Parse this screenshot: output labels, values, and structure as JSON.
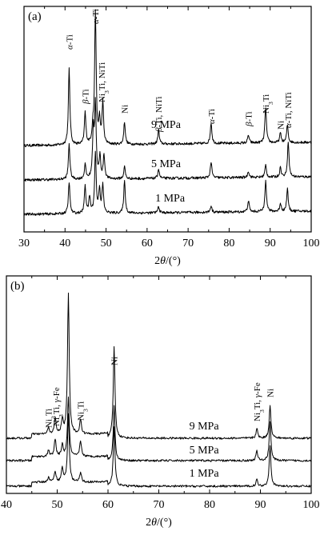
{
  "chart_data": [
    {
      "type": "line",
      "panel_label": "(a)",
      "xlabel": "2θ/(°)",
      "ylabel": "",
      "xlim": [
        30,
        100
      ],
      "xticks": [
        30,
        40,
        50,
        60,
        70,
        80,
        90,
        100
      ],
      "grid": false,
      "baseline_shape": "noisy baselines, intensity rises gently toward high angle",
      "series": [
        {
          "name": "9 MPa",
          "label": "9 MPa",
          "label_x": 61,
          "peaks": [
            [
              41.0,
              95
            ],
            [
              44.9,
              40
            ],
            [
              46.8,
              18
            ],
            [
              47.4,
              165
            ],
            [
              48.4,
              30
            ],
            [
              49.2,
              52
            ],
            [
              54.5,
              28
            ],
            [
              62.8,
              18
            ],
            [
              75.6,
              26
            ],
            [
              84.7,
              10
            ],
            [
              88.9,
              45
            ],
            [
              92.5,
              12
            ],
            [
              94.2,
              22
            ]
          ]
        },
        {
          "name": "5 MPa",
          "label": "5 MPa",
          "label_x": 61,
          "peaks": [
            [
              41.0,
              45
            ],
            [
              44.9,
              18
            ],
            [
              46.9,
              60
            ],
            [
              47.4,
              90
            ],
            [
              48.5,
              28
            ],
            [
              49.5,
              30
            ],
            [
              54.5,
              15
            ],
            [
              62.8,
              12
            ],
            [
              75.6,
              20
            ],
            [
              84.7,
              8
            ],
            [
              88.9,
              15
            ],
            [
              92.5,
              12
            ],
            [
              94.4,
              45
            ]
          ]
        },
        {
          "name": "1 MPa",
          "label": "1 MPa",
          "label_x": 62,
          "peaks": [
            [
              41.0,
              40
            ],
            [
              44.9,
              35
            ],
            [
              46.0,
              20
            ],
            [
              47.4,
              75
            ],
            [
              48.4,
              30
            ],
            [
              49.2,
              35
            ],
            [
              54.5,
              40
            ],
            [
              62.8,
              8
            ],
            [
              75.6,
              8
            ],
            [
              84.7,
              14
            ],
            [
              88.9,
              40
            ],
            [
              92.5,
              10
            ],
            [
              94.2,
              28
            ]
          ]
        }
      ],
      "annotations": [
        {
          "text": "α-Ti",
          "x": 41.0
        },
        {
          "text": "β-Ti",
          "x": 44.9
        },
        {
          "text": "α-Ti",
          "x": 47.4
        },
        {
          "text": "Ni3Ti, NiTi",
          "x": 48.9
        },
        {
          "text": "Ni",
          "x": 54.5
        },
        {
          "text": "β-Ti, NiTi",
          "x": 62.8
        },
        {
          "text": "α-Ti",
          "x": 75.6
        },
        {
          "text": "β-Ti",
          "x": 84.7
        },
        {
          "text": "Ni3Ti",
          "x": 88.9
        },
        {
          "text": "Ni",
          "x": 92.5
        },
        {
          "text": "α-Ti, NiTi",
          "x": 94.3
        }
      ]
    },
    {
      "type": "line",
      "panel_label": "(b)",
      "xlabel": "2θ/(°)",
      "ylabel": "",
      "xlim": [
        40,
        100
      ],
      "xticks": [
        40,
        50,
        60,
        70,
        80,
        90,
        100
      ],
      "grid": false,
      "baseline_shape": "noisy baselines, slightly elevated between 45 and 60 degrees",
      "series": [
        {
          "name": "9 MPa",
          "label": "9 MPa",
          "label_x": 76,
          "peaks": [
            [
              48.3,
              8
            ],
            [
              49.6,
              20
            ],
            [
              51.0,
              18
            ],
            [
              52.2,
              175
            ],
            [
              54.6,
              18
            ],
            [
              61.2,
              115
            ],
            [
              89.3,
              12
            ],
            [
              91.9,
              42
            ]
          ]
        },
        {
          "name": "5 MPa",
          "label": "5 MPa",
          "label_x": 76,
          "peaks": [
            [
              48.3,
              8
            ],
            [
              49.6,
              22
            ],
            [
              51.0,
              15
            ],
            [
              52.2,
              75
            ],
            [
              54.6,
              20
            ],
            [
              61.2,
              70
            ],
            [
              89.3,
              12
            ],
            [
              91.9,
              50
            ]
          ]
        },
        {
          "name": "1 MPa",
          "label": "1 MPa",
          "label_x": 76,
          "peaks": [
            [
              48.3,
              6
            ],
            [
              49.6,
              14
            ],
            [
              51.0,
              18
            ],
            [
              52.2,
              85
            ],
            [
              54.6,
              12
            ],
            [
              61.2,
              75
            ],
            [
              89.3,
              8
            ],
            [
              91.9,
              52
            ]
          ]
        }
      ],
      "annotations": [
        {
          "text": "Ni3Ti",
          "x": 48.3
        },
        {
          "text": "Ni3Ti, γ-Fe",
          "x": 49.8
        },
        {
          "text": "Ni3Ti",
          "x": 54.6
        },
        {
          "text": "Ni",
          "x": 61.2
        },
        {
          "text": "Ni3Ti, γ-Fe",
          "x": 89.3
        },
        {
          "text": "Ni",
          "x": 91.9
        }
      ]
    }
  ]
}
